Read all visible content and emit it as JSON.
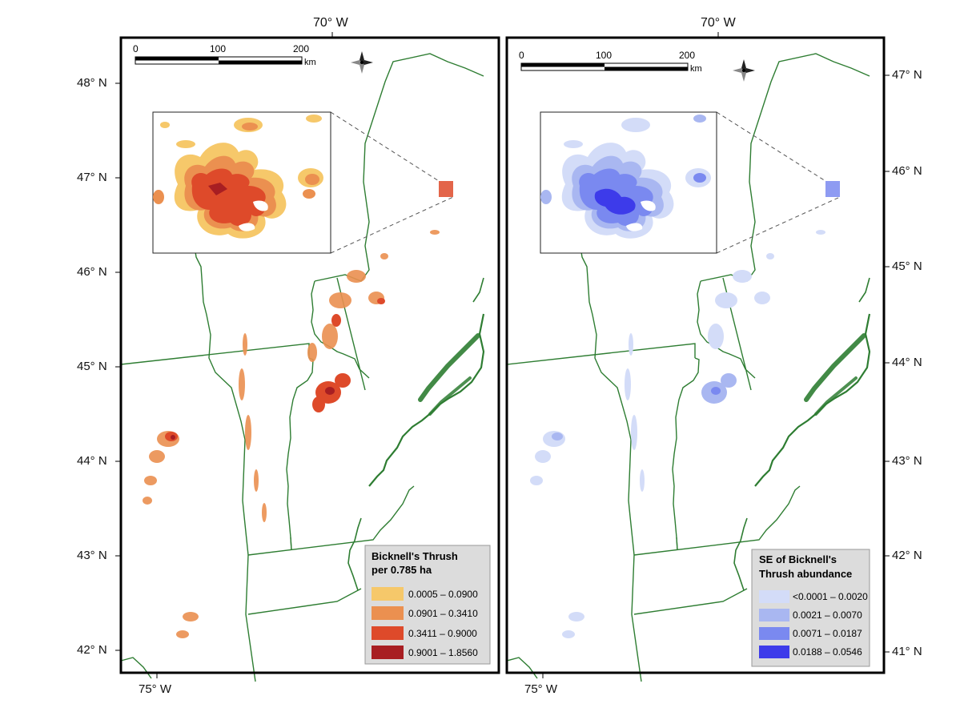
{
  "top_labels": {
    "left": "70° W",
    "right": "70° W"
  },
  "bottom_labels": {
    "left": "75° W",
    "right": "75° W"
  },
  "left_lat_labels": [
    "48° N",
    "47° N",
    "46° N",
    "45° N",
    "44° N",
    "43° N",
    "42° N"
  ],
  "right_lat_labels": [
    "47° N",
    "46° N",
    "45° N",
    "44° N",
    "43° N",
    "42° N",
    "41° N"
  ],
  "scalebar": {
    "ticks": [
      "0",
      "100",
      "200"
    ],
    "unit": "km"
  },
  "compass": {
    "icon": "compass-rose-icon"
  },
  "panels": [
    {
      "id": "abundance",
      "legend": {
        "title_line1": "Bicknell's Thrush",
        "title_line2": "per 0.785 ha",
        "classes": [
          {
            "label": "0.0005 – 0.0900",
            "color": "#F6C86A"
          },
          {
            "label": "0.0901 – 0.3410",
            "color": "#EB9050"
          },
          {
            "label": "0.3411 – 0.9000",
            "color": "#DE4A2A"
          },
          {
            "label": "0.9001 – 1.8560",
            "color": "#A81E22"
          }
        ]
      }
    },
    {
      "id": "standard-error",
      "legend": {
        "title_line1": "SE of Bicknell's",
        "title_line2": "Thrush abundance",
        "classes": [
          {
            "label": "<0.0001 – 0.0020",
            "color": "#D3DCF8"
          },
          {
            "label": "0.0021 – 0.0070",
            "color": "#A9B7F1"
          },
          {
            "label": "0.0071 – 0.0187",
            "color": "#7A89F0"
          },
          {
            "label": "0.0188 – 0.0546",
            "color": "#3D3BEA"
          }
        ]
      }
    }
  ],
  "colors": {
    "boundary": "#2E7D32",
    "coast": "#2E7D32",
    "frame": "#000000"
  }
}
